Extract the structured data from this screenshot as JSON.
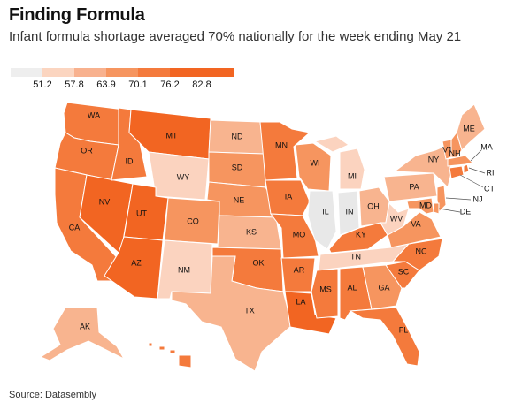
{
  "title": "Finding Formula",
  "subtitle": "Infant formula shortage averaged 70% nationally for the week ending May 21",
  "source": "Source: Datasembly",
  "legend": {
    "ticks": [
      "51.2",
      "57.8",
      "63.9",
      "70.1",
      "76.2",
      "82.8"
    ],
    "colors": [
      "#eeeeee",
      "#fbd5c0",
      "#f8b18e",
      "#f6955f",
      "#f47a3c",
      "#f26522"
    ]
  },
  "colors": {
    "bin0": "#e8e8e8",
    "bin1": "#fbd3bf",
    "bin2": "#f8b48f",
    "bin3": "#f6955f",
    "bin4": "#f47a3c",
    "bin5": "#f26522",
    "border": "#ffffff"
  },
  "states": {
    "WA": {
      "label": "WA",
      "bin": 4
    },
    "OR": {
      "label": "OR",
      "bin": 4
    },
    "CA": {
      "label": "CA",
      "bin": 4
    },
    "NV": {
      "label": "NV",
      "bin": 5
    },
    "ID": {
      "label": "ID",
      "bin": 4
    },
    "MT": {
      "label": "MT",
      "bin": 5
    },
    "WY": {
      "label": "WY",
      "bin": 1
    },
    "UT": {
      "label": "UT",
      "bin": 5
    },
    "AZ": {
      "label": "AZ",
      "bin": 5
    },
    "CO": {
      "label": "CO",
      "bin": 3
    },
    "NM": {
      "label": "NM",
      "bin": 1
    },
    "ND": {
      "label": "ND",
      "bin": 2
    },
    "SD": {
      "label": "SD",
      "bin": 3
    },
    "NE": {
      "label": "NE",
      "bin": 3
    },
    "KS": {
      "label": "KS",
      "bin": 2
    },
    "OK": {
      "label": "OK",
      "bin": 4
    },
    "TX": {
      "label": "TX",
      "bin": 2
    },
    "MN": {
      "label": "MN",
      "bin": 4
    },
    "IA": {
      "label": "IA",
      "bin": 4
    },
    "MO": {
      "label": "MO",
      "bin": 4
    },
    "AR": {
      "label": "AR",
      "bin": 4
    },
    "LA": {
      "label": "LA",
      "bin": 5
    },
    "WI": {
      "label": "WI",
      "bin": 3
    },
    "IL": {
      "label": "IL",
      "bin": 0
    },
    "IN": {
      "label": "IN",
      "bin": 0
    },
    "MI": {
      "label": "MI",
      "bin": 1
    },
    "OH": {
      "label": "OH",
      "bin": 2
    },
    "KY": {
      "label": "KY",
      "bin": 4
    },
    "TN": {
      "label": "TN",
      "bin": 1
    },
    "MS": {
      "label": "MS",
      "bin": 4
    },
    "AL": {
      "label": "AL",
      "bin": 4
    },
    "GA": {
      "label": "GA",
      "bin": 3
    },
    "FL": {
      "label": "FL",
      "bin": 4
    },
    "SC": {
      "label": "SC",
      "bin": 4
    },
    "NC": {
      "label": "NC",
      "bin": 4
    },
    "VA": {
      "label": "VA",
      "bin": 3
    },
    "WV": {
      "label": "WV",
      "bin": 1
    },
    "PA": {
      "label": "PA",
      "bin": 2
    },
    "NY": {
      "label": "NY",
      "bin": 2
    },
    "VT": {
      "label": "VT",
      "bin": 3
    },
    "NH": {
      "label": "NH",
      "bin": 3
    },
    "ME": {
      "label": "ME",
      "bin": 2
    },
    "MA": {
      "label": "MA",
      "bin": 3
    },
    "RI": {
      "label": "RI",
      "bin": 4
    },
    "CT": {
      "label": "CT",
      "bin": 4
    },
    "NJ": {
      "label": "NJ",
      "bin": 3
    },
    "DE": {
      "label": "DE",
      "bin": 3
    },
    "MD": {
      "label": "MD",
      "bin": 3
    },
    "AK": {
      "label": "AK",
      "bin": 2
    },
    "HI": {
      "label": "",
      "bin": 4
    }
  }
}
